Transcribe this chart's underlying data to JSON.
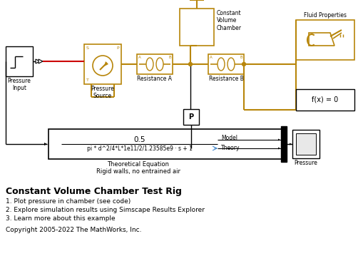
{
  "bg_color": "#ffffff",
  "gold": "#B8860B",
  "black": "#000000",
  "red": "#cc0000",
  "items": {
    "pressure_input_label": "Pressure\nInput",
    "pressure_source_label": "Pressure\nSource",
    "resistance_a_label": "Resistance A",
    "resistance_b_label": "Resistance B",
    "constant_volume_label": "Constant\nVolume\nChamber",
    "fluid_props_label": "Fluid Properties",
    "fcn_label": "f(x) = 0",
    "theoretical_eq_num": "0.5",
    "theoretical_eq_den": "pi * d^2/4*L*1e11/2/1.23585e9 · s + 1",
    "theoretical_eq_label": "Theoretical Equation",
    "rigid_walls_label": "Rigid walls, no entrained air",
    "model_label": "Model",
    "theory_label": "Theory",
    "pressure_scope_label": "Pressure",
    "p_sensor_label": "P",
    "title_bold": "Constant Volume Chamber Test Rig",
    "bullet1": "1. Plot pressure in chamber (see code)",
    "bullet2": "2. Explore simulation results using Simscape Results Explorer",
    "bullet3": "3. Learn more about this example",
    "copyright": "Copyright 2005-2022 The MathWorks, Inc."
  }
}
